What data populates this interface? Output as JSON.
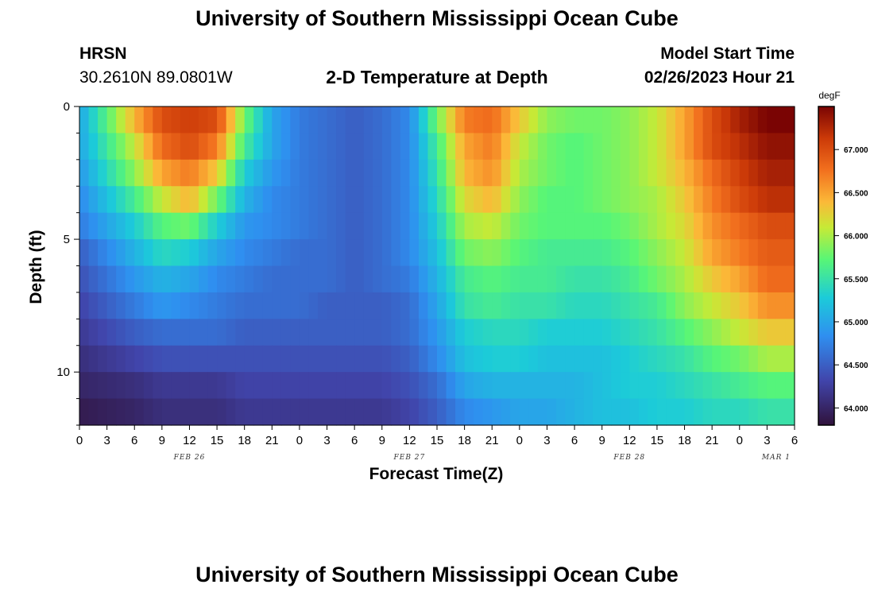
{
  "header": {
    "title": "University of Southern Mississippi Ocean Cube",
    "station": "HRSN",
    "coords": "30.2610N  89.0801W",
    "subtitle": "2-D Temperature at Depth",
    "model_label": "Model Start Time",
    "model_time": "02/26/2023 Hour 21"
  },
  "footer": {
    "title": "University of Southern Mississippi Ocean Cube"
  },
  "chart_data": {
    "type": "heatmap",
    "title": "2-D Temperature at Depth",
    "xlabel": "Forecast Time(Z)",
    "ylabel": "Depth (ft)",
    "x_tick_labels": [
      "0",
      "3",
      "6",
      "9",
      "12",
      "15",
      "18",
      "21",
      "0",
      "3",
      "6",
      "9",
      "12",
      "15",
      "18",
      "21",
      "0",
      "3",
      "6",
      "9",
      "12",
      "15",
      "18",
      "21",
      "0",
      "3",
      "6"
    ],
    "x_range_hours": [
      0,
      78
    ],
    "day_labels": [
      {
        "label": "FEB 26",
        "hour": 12
      },
      {
        "label": "FEB 27",
        "hour": 36
      },
      {
        "label": "FEB 28",
        "hour": 60
      },
      {
        "label": "MAR 1",
        "hour": 76
      }
    ],
    "y_ticks": [
      0,
      5,
      10
    ],
    "y_range_ft": [
      0,
      12
    ],
    "colorbar": {
      "unit": "degF",
      "range": [
        63.8,
        67.5
      ],
      "ticks": [
        "64.000",
        "64.500",
        "65.000",
        "65.500",
        "66.000",
        "66.500",
        "67.000"
      ]
    },
    "depths_ft": [
      0.5,
      1.5,
      2.5,
      3.5,
      4.5,
      5.5,
      6.5,
      7.5,
      8.5,
      9.5,
      10.5,
      11.5
    ],
    "hours": [
      0,
      6,
      9,
      12,
      15,
      18,
      21,
      24,
      27,
      30,
      33,
      36,
      39,
      42,
      45,
      48,
      51,
      54,
      57,
      60,
      63,
      66,
      69,
      72,
      75,
      78
    ],
    "temperatures_degF": [
      [
        65.0,
        66.4,
        67.0,
        67.1,
        67.0,
        65.8,
        65.0,
        64.7,
        64.6,
        64.5,
        64.6,
        64.8,
        65.8,
        66.7,
        66.8,
        66.3,
        65.9,
        65.8,
        65.8,
        65.9,
        66.1,
        66.5,
        67.0,
        67.3,
        67.5,
        67.5
      ],
      [
        65.0,
        66.1,
        66.8,
        67.0,
        66.7,
        65.6,
        65.0,
        64.7,
        64.6,
        64.5,
        64.6,
        64.8,
        65.6,
        66.5,
        66.7,
        66.1,
        65.8,
        65.7,
        65.8,
        65.9,
        66.1,
        66.5,
        67.0,
        67.2,
        67.4,
        67.4
      ],
      [
        64.9,
        65.9,
        66.5,
        66.7,
        66.3,
        65.3,
        64.9,
        64.7,
        64.6,
        64.5,
        64.6,
        64.8,
        65.5,
        66.4,
        66.6,
        66.0,
        65.8,
        65.7,
        65.8,
        65.9,
        66.1,
        66.4,
        66.8,
        67.1,
        67.3,
        67.3
      ],
      [
        64.8,
        65.6,
        66.1,
        66.4,
        65.8,
        65.1,
        64.8,
        64.7,
        64.6,
        64.5,
        64.6,
        64.8,
        65.4,
        66.2,
        66.4,
        65.9,
        65.7,
        65.7,
        65.8,
        65.9,
        66.0,
        66.3,
        66.7,
        67.0,
        67.2,
        67.2
      ],
      [
        64.7,
        65.3,
        65.7,
        65.8,
        65.3,
        64.9,
        64.8,
        64.7,
        64.6,
        64.5,
        64.6,
        64.8,
        65.3,
        66.0,
        66.1,
        65.8,
        65.7,
        65.7,
        65.7,
        65.8,
        66.0,
        66.2,
        66.6,
        66.8,
        67.0,
        67.0
      ],
      [
        64.5,
        65.1,
        65.4,
        65.3,
        65.0,
        64.8,
        64.7,
        64.6,
        64.6,
        64.5,
        64.6,
        64.8,
        65.2,
        65.8,
        65.9,
        65.7,
        65.6,
        65.6,
        65.6,
        65.7,
        65.9,
        66.1,
        66.5,
        66.7,
        66.9,
        66.9
      ],
      [
        64.4,
        64.9,
        65.1,
        65.0,
        64.8,
        64.7,
        64.6,
        64.6,
        64.6,
        64.5,
        64.6,
        64.7,
        65.1,
        65.6,
        65.7,
        65.6,
        65.6,
        65.5,
        65.5,
        65.6,
        65.8,
        66.0,
        66.3,
        66.5,
        66.8,
        66.8
      ],
      [
        64.3,
        64.7,
        64.9,
        64.8,
        64.7,
        64.6,
        64.6,
        64.6,
        64.5,
        64.5,
        64.5,
        64.6,
        65.0,
        65.5,
        65.6,
        65.5,
        65.5,
        65.4,
        65.4,
        65.5,
        65.6,
        65.9,
        66.1,
        66.3,
        66.6,
        66.6
      ],
      [
        64.2,
        64.5,
        64.6,
        64.6,
        64.6,
        64.5,
        64.5,
        64.5,
        64.5,
        64.5,
        64.5,
        64.6,
        64.9,
        65.3,
        65.4,
        65.4,
        65.3,
        65.3,
        65.3,
        65.4,
        65.5,
        65.7,
        65.9,
        66.1,
        66.3,
        66.3
      ],
      [
        64.1,
        64.3,
        64.4,
        64.4,
        64.4,
        64.4,
        64.4,
        64.4,
        64.4,
        64.4,
        64.4,
        64.5,
        64.8,
        65.2,
        65.3,
        65.3,
        65.2,
        65.2,
        65.2,
        65.3,
        65.4,
        65.5,
        65.7,
        65.8,
        66.0,
        66.0
      ],
      [
        64.0,
        64.1,
        64.2,
        64.2,
        64.2,
        64.3,
        64.3,
        64.3,
        64.3,
        64.3,
        64.3,
        64.4,
        64.6,
        65.0,
        65.1,
        65.1,
        65.1,
        65.1,
        65.2,
        65.3,
        65.3,
        65.4,
        65.5,
        65.6,
        65.7,
        65.7
      ],
      [
        63.9,
        64.0,
        64.1,
        64.1,
        64.1,
        64.2,
        64.2,
        64.2,
        64.2,
        64.2,
        64.2,
        64.3,
        64.5,
        64.8,
        64.9,
        65.0,
        65.0,
        65.1,
        65.2,
        65.2,
        65.3,
        65.3,
        65.4,
        65.4,
        65.5,
        65.5
      ]
    ]
  }
}
